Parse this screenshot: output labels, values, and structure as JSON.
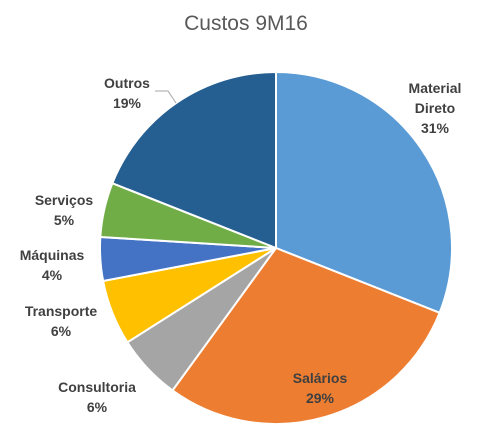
{
  "chart_data": {
    "type": "pie",
    "title": "Custos 9M16",
    "slices": [
      {
        "name": "Material Direto",
        "label_lines": [
          "Material",
          "Direto"
        ],
        "value": 31,
        "value_label": "31%",
        "color": "#5B9BD5"
      },
      {
        "name": "Salários",
        "label_lines": [
          "Salários"
        ],
        "value": 29,
        "value_label": "29%",
        "color": "#ED7D31"
      },
      {
        "name": "Consultoria",
        "label_lines": [
          "Consultoria"
        ],
        "value": 6,
        "value_label": "6%",
        "color": "#A5A5A5"
      },
      {
        "name": "Transporte",
        "label_lines": [
          "Transporte"
        ],
        "value": 6,
        "value_label": "6%",
        "color": "#FFC000"
      },
      {
        "name": "Máquinas",
        "label_lines": [
          "Máquinas"
        ],
        "value": 4,
        "value_label": "4%",
        "color": "#4472C4"
      },
      {
        "name": "Serviços",
        "label_lines": [
          "Serviços"
        ],
        "value": 5,
        "value_label": "5%",
        "color": "#70AD47"
      },
      {
        "name": "Outros",
        "label_lines": [
          "Outros"
        ],
        "value": 19,
        "value_label": "19%",
        "color": "#255E91"
      }
    ],
    "start_angle_deg": 0,
    "direction": "clockwise",
    "legend": "none",
    "data_labels": "category-and-percent"
  }
}
